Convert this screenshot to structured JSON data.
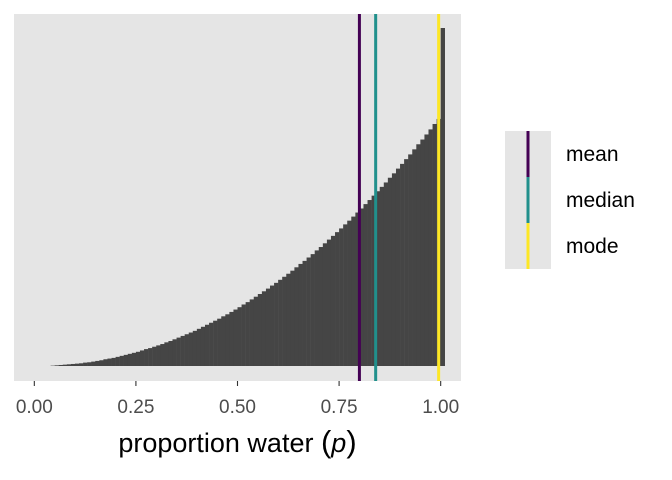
{
  "chart_data": {
    "type": "histogram",
    "title": "",
    "xlabel": "proportion water",
    "xlabel_symbol": "p",
    "ylabel": "",
    "xlim": [
      -0.05,
      1.05
    ],
    "x_ticks": [
      0.0,
      0.25,
      0.5,
      0.75,
      1.0
    ],
    "x_tick_labels": [
      "0.00",
      "0.25",
      "0.50",
      "0.75",
      "1.00"
    ],
    "y_axis_visible": false,
    "grid": false,
    "panel_background": "#e5e5e5",
    "bar_color": "#454545",
    "bin_width": 0.01,
    "histogram_shape": "rising density proportional to p squared (posterior for water proportion)",
    "bins": {
      "x_start": 0.0,
      "relative_heights": [
        0.0,
        0.0,
        0.0,
        0.0,
        0.001,
        0.002,
        0.003,
        0.004,
        0.005,
        0.006,
        0.007,
        0.008,
        0.01,
        0.011,
        0.013,
        0.015,
        0.017,
        0.02,
        0.022,
        0.024,
        0.027,
        0.03,
        0.033,
        0.036,
        0.039,
        0.042,
        0.046,
        0.05,
        0.053,
        0.057,
        0.061,
        0.065,
        0.07,
        0.074,
        0.079,
        0.084,
        0.089,
        0.094,
        0.099,
        0.104,
        0.11,
        0.116,
        0.122,
        0.128,
        0.134,
        0.14,
        0.147,
        0.153,
        0.16,
        0.167,
        0.174,
        0.182,
        0.189,
        0.197,
        0.205,
        0.213,
        0.221,
        0.229,
        0.238,
        0.246,
        0.255,
        0.264,
        0.273,
        0.282,
        0.292,
        0.302,
        0.311,
        0.321,
        0.331,
        0.342,
        0.352,
        0.363,
        0.374,
        0.385,
        0.396,
        0.407,
        0.419,
        0.43,
        0.442,
        0.454,
        0.466,
        0.479,
        0.491,
        0.504,
        0.517,
        0.53,
        0.543,
        0.557,
        0.57,
        0.584,
        0.598,
        0.612,
        0.626,
        0.641,
        0.656,
        0.67,
        0.685,
        0.7,
        0.716,
        0.731,
        1.0
      ]
    },
    "reference_lines": [
      {
        "name": "mean",
        "x": 0.8,
        "color": "#440154"
      },
      {
        "name": "median",
        "x": 0.84,
        "color": "#21908c"
      },
      {
        "name": "mode",
        "x": 0.995,
        "color": "#fde725"
      }
    ],
    "legend_placement": "right",
    "legend_labels": [
      "mean",
      "median",
      "mode"
    ]
  }
}
